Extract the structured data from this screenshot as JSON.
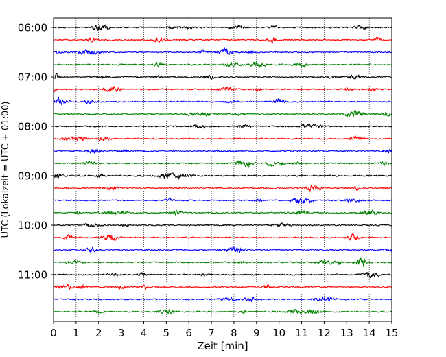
{
  "chart_data": {
    "type": "line",
    "subtype": "helicorder-seismogram",
    "xlabel": "Zeit  [min]",
    "ylabel": "UTC (Lokalzeit = UTC + 01:00)",
    "xlim": [
      0,
      15
    ],
    "x_ticks": [
      "0",
      "1",
      "2",
      "3",
      "4",
      "5",
      "6",
      "7",
      "8",
      "9",
      "10",
      "11",
      "12",
      "13",
      "14",
      "15"
    ],
    "y_tick_labels": [
      "06:00",
      "07:00",
      "08:00",
      "09:00",
      "10:00",
      "11:00"
    ],
    "trace_minutes": 15,
    "trace_start_times": [
      "06:00",
      "06:15",
      "06:30",
      "06:45",
      "07:00",
      "07:15",
      "07:30",
      "07:45",
      "08:00",
      "08:15",
      "08:30",
      "08:45",
      "09:00",
      "09:15",
      "09:30",
      "09:45",
      "10:00",
      "10:15",
      "10:30",
      "10:45",
      "11:00",
      "11:15",
      "11:30",
      "11:45"
    ],
    "trace_colors": [
      "#000000",
      "#ff0000",
      "#0000ff",
      "#008000"
    ],
    "vertical_grid": "dotted",
    "traces_count": 24
  }
}
